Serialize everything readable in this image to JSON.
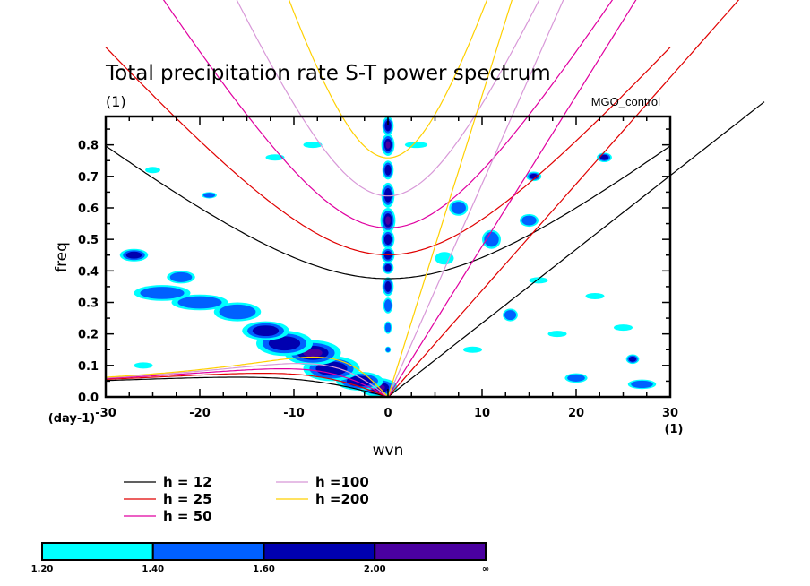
{
  "chart_data": {
    "type": "heatmap",
    "title": "Total precipitation rate S-T power spectrum",
    "subtitle_units": "(1)",
    "run_label": "MGO_control",
    "xlabel": "wvn",
    "ylabel": "freq",
    "x_units_label": "(1)",
    "y_units_label": "(day-1)",
    "xlim": [
      -30,
      30
    ],
    "ylim": [
      0,
      0.89
    ],
    "x_ticks": [
      -30,
      -20,
      -10,
      0,
      10,
      20,
      30
    ],
    "x_tick_labels": [
      "-30",
      "-20",
      "-10",
      "0",
      "10",
      "20",
      "30"
    ],
    "x_minor_step": 2.5,
    "y_ticks": [
      0.0,
      0.1,
      0.2,
      0.3,
      0.4,
      0.5,
      0.6,
      0.7,
      0.8
    ],
    "y_tick_labels": [
      "0.0",
      "0.1",
      "0.2",
      "0.3",
      "0.4",
      "0.5",
      "0.6",
      "0.7",
      "0.8"
    ],
    "y_minor_step": 0.05,
    "grid": false,
    "contour_levels": [
      1.2,
      1.4,
      1.6,
      2.0
    ],
    "colorbar": {
      "labels": [
        "1.20",
        "1.40",
        "1.60",
        "2.00",
        "∞"
      ],
      "colors": [
        "#00ffff",
        "#0060ff",
        "#0000b0",
        "#4a00a0"
      ],
      "placement": "bottom"
    },
    "dispersion_curves": {
      "equivalent_depths_m": [
        12,
        25,
        50,
        100,
        200
      ],
      "colors": [
        "#000000",
        "#e00000",
        "#e000a0",
        "#d898d8",
        "#ffd000"
      ],
      "wave_types": [
        "kelvin",
        "equatorial_rossby",
        "inertia_gravity_n1"
      ]
    },
    "legend": {
      "placement": "bottom-left",
      "entries": [
        {
          "label": "h = 12",
          "color": "#000000"
        },
        {
          "label": "h = 25",
          "color": "#e00000"
        },
        {
          "label": "h = 50",
          "color": "#e000a0"
        },
        {
          "label": "h =100",
          "color": "#d898d8"
        },
        {
          "label": "h =200",
          "color": "#ffd000"
        }
      ]
    },
    "features": [
      {
        "name": "zonal-mean-column",
        "wvn": 0,
        "freq_range": [
          0.02,
          0.89
        ],
        "level": 3
      },
      {
        "name": "rossby-ridge",
        "wvn_range": [
          -25,
          -1
        ],
        "freq_range": [
          0.02,
          0.45
        ],
        "level": 3
      },
      {
        "name": "origin-peak",
        "wvn": 0,
        "freq": 0.02,
        "level": 4
      }
    ],
    "patches": [
      {
        "x": 0,
        "y": 0.86,
        "rx": 0.6,
        "ry": 0.03,
        "level": 3
      },
      {
        "x": 0,
        "y": 0.8,
        "rx": 0.7,
        "ry": 0.035,
        "level": 4
      },
      {
        "x": 0,
        "y": 0.72,
        "rx": 0.6,
        "ry": 0.03,
        "level": 3
      },
      {
        "x": 0,
        "y": 0.64,
        "rx": 0.7,
        "ry": 0.04,
        "level": 3
      },
      {
        "x": 0,
        "y": 0.56,
        "rx": 0.8,
        "ry": 0.04,
        "level": 4
      },
      {
        "x": 0,
        "y": 0.5,
        "rx": 0.7,
        "ry": 0.03,
        "level": 3
      },
      {
        "x": 0,
        "y": 0.45,
        "rx": 0.7,
        "ry": 0.025,
        "level": 3
      },
      {
        "x": 0,
        "y": 0.41,
        "rx": 0.6,
        "ry": 0.02,
        "level": 3
      },
      {
        "x": 0,
        "y": 0.35,
        "rx": 0.6,
        "ry": 0.03,
        "level": 3
      },
      {
        "x": 0,
        "y": 0.29,
        "rx": 0.5,
        "ry": 0.025,
        "level": 2
      },
      {
        "x": 0,
        "y": 0.22,
        "rx": 0.4,
        "ry": 0.02,
        "level": 2
      },
      {
        "x": 0,
        "y": 0.15,
        "rx": 0.3,
        "ry": 0.01,
        "level": 2
      },
      {
        "x": -1,
        "y": 0.03,
        "rx": 2.0,
        "ry": 0.03,
        "level": 4
      },
      {
        "x": -3,
        "y": 0.05,
        "rx": 2.5,
        "ry": 0.03,
        "level": 3
      },
      {
        "x": -6,
        "y": 0.09,
        "rx": 3.0,
        "ry": 0.04,
        "level": 3
      },
      {
        "x": -8,
        "y": 0.14,
        "rx": 3.0,
        "ry": 0.04,
        "level": 4
      },
      {
        "x": -11,
        "y": 0.17,
        "rx": 3.0,
        "ry": 0.04,
        "level": 3
      },
      {
        "x": -13,
        "y": 0.21,
        "rx": 2.5,
        "ry": 0.03,
        "level": 3
      },
      {
        "x": -16,
        "y": 0.27,
        "rx": 2.5,
        "ry": 0.03,
        "level": 2
      },
      {
        "x": -20,
        "y": 0.3,
        "rx": 3.0,
        "ry": 0.025,
        "level": 2
      },
      {
        "x": -24,
        "y": 0.33,
        "rx": 3.0,
        "ry": 0.025,
        "level": 2
      },
      {
        "x": -27,
        "y": 0.45,
        "rx": 1.5,
        "ry": 0.02,
        "level": 3
      },
      {
        "x": -22,
        "y": 0.38,
        "rx": 1.5,
        "ry": 0.02,
        "level": 2
      },
      {
        "x": -26,
        "y": 0.1,
        "rx": 1.0,
        "ry": 0.01,
        "level": 1
      },
      {
        "x": 7.5,
        "y": 0.6,
        "rx": 1.0,
        "ry": 0.025,
        "level": 2
      },
      {
        "x": 11,
        "y": 0.5,
        "rx": 1.0,
        "ry": 0.03,
        "level": 2
      },
      {
        "x": 15,
        "y": 0.56,
        "rx": 1.0,
        "ry": 0.02,
        "level": 2
      },
      {
        "x": 15.5,
        "y": 0.7,
        "rx": 0.8,
        "ry": 0.015,
        "level": 3
      },
      {
        "x": 23,
        "y": 0.76,
        "rx": 0.8,
        "ry": 0.015,
        "level": 3
      },
      {
        "x": 13,
        "y": 0.26,
        "rx": 0.8,
        "ry": 0.02,
        "level": 2
      },
      {
        "x": 26,
        "y": 0.12,
        "rx": 0.7,
        "ry": 0.015,
        "level": 3
      },
      {
        "x": 20,
        "y": 0.06,
        "rx": 1.2,
        "ry": 0.015,
        "level": 2
      },
      {
        "x": 27,
        "y": 0.04,
        "rx": 1.5,
        "ry": 0.015,
        "level": 2
      },
      {
        "x": 22,
        "y": 0.32,
        "rx": 1.0,
        "ry": 0.01,
        "level": 1
      },
      {
        "x": 16,
        "y": 0.37,
        "rx": 1.0,
        "ry": 0.01,
        "level": 1
      },
      {
        "x": 6,
        "y": 0.44,
        "rx": 1.0,
        "ry": 0.02,
        "level": 1
      },
      {
        "x": -8,
        "y": 0.8,
        "rx": 1.0,
        "ry": 0.01,
        "level": 1
      },
      {
        "x": -12,
        "y": 0.76,
        "rx": 1.0,
        "ry": 0.01,
        "level": 1
      },
      {
        "x": -25,
        "y": 0.72,
        "rx": 0.8,
        "ry": 0.01,
        "level": 1
      },
      {
        "x": -19,
        "y": 0.64,
        "rx": 0.8,
        "ry": 0.01,
        "level": 2
      },
      {
        "x": 3,
        "y": 0.8,
        "rx": 1.2,
        "ry": 0.01,
        "level": 1
      },
      {
        "x": 18,
        "y": 0.2,
        "rx": 1.0,
        "ry": 0.01,
        "level": 1
      },
      {
        "x": 25,
        "y": 0.22,
        "rx": 1.0,
        "ry": 0.01,
        "level": 1
      },
      {
        "x": 9,
        "y": 0.15,
        "rx": 1.0,
        "ry": 0.01,
        "level": 1
      }
    ]
  }
}
